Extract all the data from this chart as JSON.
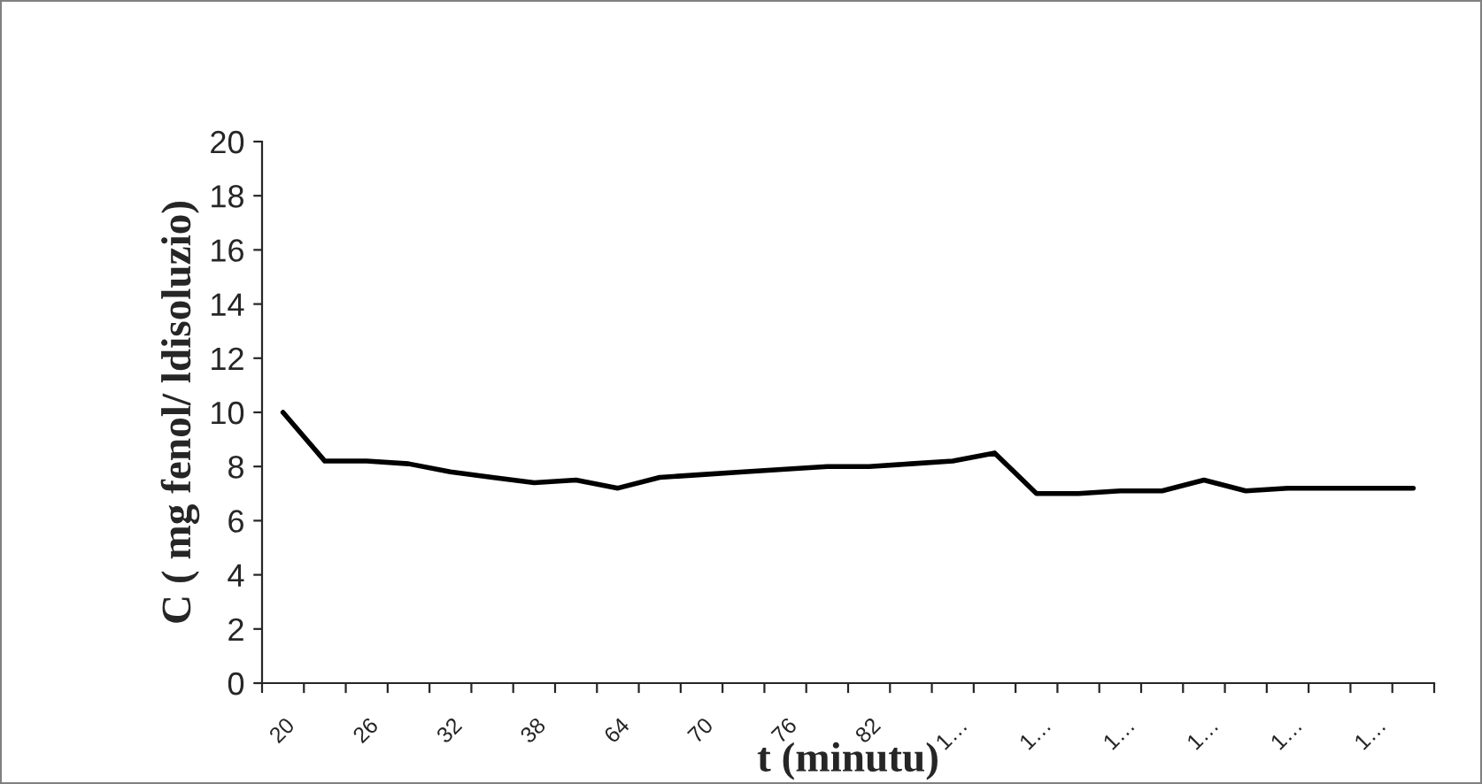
{
  "chart_data": {
    "type": "line",
    "xlabel": "t (minutu)",
    "ylabel": "C ( mg fenol/ ldisoluzio)",
    "categories": [
      "20",
      null,
      "26",
      null,
      "32",
      null,
      "38",
      null,
      "64",
      null,
      "70",
      null,
      "76",
      null,
      "82",
      null,
      "1…",
      null,
      "1…",
      null,
      "1…",
      null,
      "1…",
      null,
      "1…",
      null,
      "1…",
      null
    ],
    "series": [
      {
        "color": "#000000",
        "values": [
          10.0,
          8.2,
          8.2,
          8.1,
          7.8,
          7.6,
          7.4,
          7.5,
          7.2,
          7.6,
          7.7,
          7.8,
          7.9,
          8.0,
          8.0,
          8.1,
          8.2,
          8.5,
          7.0,
          7.0,
          7.1,
          7.1,
          7.5,
          7.1,
          7.2,
          7.2,
          7.2,
          7.2
        ]
      }
    ],
    "ylim": [
      0,
      20
    ],
    "yticks": [
      0,
      2,
      4,
      6,
      8,
      10,
      12,
      14,
      16,
      18,
      20
    ],
    "grid": false,
    "legend": false,
    "marker": "none",
    "line_style": "solid"
  }
}
